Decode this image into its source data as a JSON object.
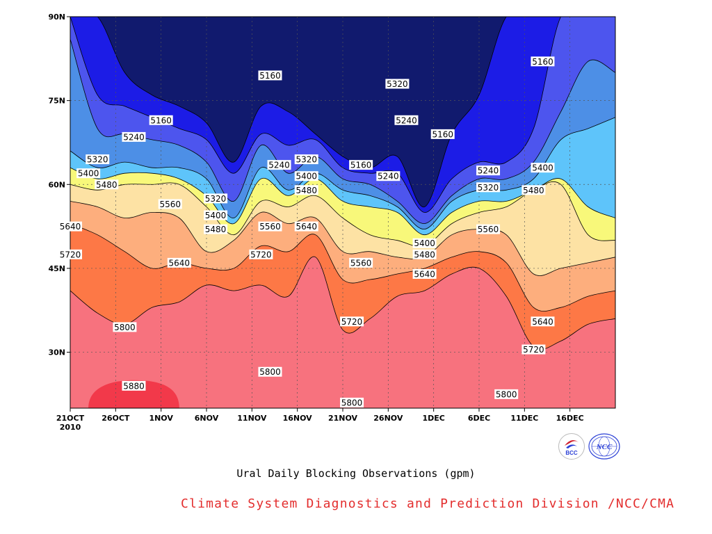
{
  "colors": {
    "bands": [
      "#111a6e",
      "#1c1ce6",
      "#4d55ee",
      "#4d8fe6",
      "#5ec4fa",
      "#f8f87a",
      "#fde2a4",
      "#fdae7d",
      "#fd7846",
      "#f7727e",
      "#f2394a"
    ],
    "credit": "#e32d2d",
    "logo_blue": "#2a3fd6",
    "logo_red": "#d01f2f"
  },
  "icons": {
    "bcc_logo": "bcc-logo-icon",
    "ncc_logo": "ncc-logo-icon"
  },
  "captions": {
    "xaxis": "Ural Daily Blocking Observations (gpm)",
    "credit": "Climate System Diagnostics and Prediction Division /NCC/CMA"
  },
  "logos": {
    "bcc_text": "BCC",
    "ncc_text": "NCC"
  },
  "chart_data": {
    "type": "contour",
    "xlabel": "",
    "ylabel": "",
    "x_ticks": [
      "21OCT",
      "26OCT",
      "1NOV",
      "6NOV",
      "11NOV",
      "16NOV",
      "21NOV",
      "26NOV",
      "1DEC",
      "6DEC",
      "11DEC",
      "16DEC"
    ],
    "x_year_label": "2010",
    "x_range": [
      "2010-10-21",
      "2010-12-20"
    ],
    "y_ticks": [
      {
        "value": 30,
        "label": "30N"
      },
      {
        "value": 45,
        "label": "45N"
      },
      {
        "value": 60,
        "label": "60N"
      },
      {
        "value": 75,
        "label": "75N"
      },
      {
        "value": 90,
        "label": "90N"
      }
    ],
    "ylim": [
      20,
      90
    ],
    "grid": true,
    "contour_levels": [
      5160,
      5240,
      5320,
      5400,
      5480,
      5560,
      5640,
      5720,
      5800,
      5880
    ],
    "contour_latitudes": {
      "dates": [
        "2010-10-21",
        "2010-10-24",
        "2010-10-27",
        "2010-10-30",
        "2010-11-02",
        "2010-11-05",
        "2010-11-08",
        "2010-11-11",
        "2010-11-14",
        "2010-11-17",
        "2010-11-20",
        "2010-11-23",
        "2010-11-26",
        "2010-11-29",
        "2010-12-02",
        "2010-12-05",
        "2010-12-08",
        "2010-12-11",
        "2010-12-14",
        "2010-12-17",
        "2010-12-20"
      ],
      "5160": [
        90,
        90,
        80,
        76,
        74,
        71,
        64,
        74,
        73,
        69,
        65,
        63,
        65,
        56,
        69,
        76,
        90,
        90,
        90,
        90,
        90
      ],
      "5240": [
        90,
        76,
        74,
        72,
        70,
        68,
        62,
        69,
        67,
        68,
        63,
        62,
        62,
        55,
        61,
        64,
        64,
        70,
        90,
        90,
        90
      ],
      "5320": [
        86,
        70,
        69,
        68,
        67,
        64,
        57,
        67,
        62,
        65,
        61,
        60,
        57,
        53,
        58,
        61,
        61,
        64,
        73,
        82,
        80
      ],
      "5400": [
        66,
        63,
        64,
        63,
        63,
        61,
        54,
        63,
        59,
        62,
        59,
        58,
        56,
        52,
        57,
        59,
        59,
        61,
        68,
        70,
        72
      ],
      "5480": [
        63,
        61,
        62,
        62,
        61,
        58,
        53,
        61,
        58,
        61,
        57,
        56,
        55,
        51,
        55,
        57,
        57,
        59,
        61,
        56,
        54
      ],
      "5560": [
        60,
        59,
        60,
        60,
        60,
        56,
        51,
        57,
        56,
        58,
        54,
        51,
        50,
        49,
        53,
        55,
        56,
        59,
        60,
        51,
        50
      ],
      "5640": [
        57,
        56,
        54,
        55,
        54,
        48,
        50,
        55,
        53,
        54,
        48,
        48,
        47,
        47,
        51,
        52,
        51,
        44,
        45,
        46,
        47
      ],
      "5720": [
        53,
        51,
        48,
        45,
        46,
        45,
        45,
        49,
        48,
        51,
        43,
        43,
        44,
        45,
        47,
        48,
        46,
        38,
        38,
        40,
        41
      ],
      "5800": [
        41,
        37,
        35,
        38,
        39,
        42,
        41,
        42,
        40,
        47,
        34,
        36,
        40,
        41,
        44,
        45,
        40,
        31,
        32,
        35,
        36
      ],
      "5880": [
        20,
        20,
        22,
        22,
        20,
        20,
        20,
        20,
        20,
        20,
        20,
        20,
        20,
        20,
        20,
        20,
        20,
        20,
        20,
        20,
        20
      ]
    },
    "contour_labels": [
      {
        "text": "5160",
        "date": "2010-10-31",
        "lat": 71.5
      },
      {
        "text": "5160",
        "date": "2010-11-12",
        "lat": 79.5
      },
      {
        "text": "5160",
        "date": "2010-11-22",
        "lat": 63.5
      },
      {
        "text": "5160",
        "date": "2010-12-01",
        "lat": 69
      },
      {
        "text": "5160",
        "date": "2010-12-12",
        "lat": 82
      },
      {
        "text": "5240",
        "date": "2010-10-28",
        "lat": 68.5
      },
      {
        "text": "5240",
        "date": "2010-11-13",
        "lat": 63.5
      },
      {
        "text": "5240",
        "date": "2010-11-25",
        "lat": 61.5
      },
      {
        "text": "5240",
        "date": "2010-11-27",
        "lat": 71.5
      },
      {
        "text": "5240",
        "date": "2010-12-06",
        "lat": 62.5
      },
      {
        "text": "5320",
        "date": "2010-10-24",
        "lat": 64.5
      },
      {
        "text": "5320",
        "date": "2010-11-06",
        "lat": 57.5
      },
      {
        "text": "5320",
        "date": "2010-11-16",
        "lat": 64.5
      },
      {
        "text": "5320",
        "date": "2010-11-26",
        "lat": 78
      },
      {
        "text": "5320",
        "date": "2010-12-06",
        "lat": 59.5
      },
      {
        "text": "5400",
        "date": "2010-10-23",
        "lat": 62
      },
      {
        "text": "5400",
        "date": "2010-11-06",
        "lat": 54.5
      },
      {
        "text": "5400",
        "date": "2010-11-16",
        "lat": 61.5
      },
      {
        "text": "5400",
        "date": "2010-11-29",
        "lat": 49.5
      },
      {
        "text": "5400",
        "date": "2010-12-12",
        "lat": 63
      },
      {
        "text": "5480",
        "date": "2010-10-25",
        "lat": 60
      },
      {
        "text": "5480",
        "date": "2010-11-06",
        "lat": 52
      },
      {
        "text": "5480",
        "date": "2010-11-16",
        "lat": 59
      },
      {
        "text": "5480",
        "date": "2010-11-29",
        "lat": 47.5
      },
      {
        "text": "5480",
        "date": "2010-12-11",
        "lat": 59
      },
      {
        "text": "5560",
        "date": "2010-11-01",
        "lat": 56.5
      },
      {
        "text": "5560",
        "date": "2010-11-12",
        "lat": 52.5
      },
      {
        "text": "5560",
        "date": "2010-11-22",
        "lat": 46
      },
      {
        "text": "5560",
        "date": "2010-12-06",
        "lat": 52
      },
      {
        "text": "5640",
        "date": "2010-10-21",
        "lat": 52.5
      },
      {
        "text": "5640",
        "date": "2010-11-02",
        "lat": 46
      },
      {
        "text": "5640",
        "date": "2010-11-16",
        "lat": 52.5
      },
      {
        "text": "5640",
        "date": "2010-11-29",
        "lat": 44
      },
      {
        "text": "5640",
        "date": "2010-12-12",
        "lat": 35.5
      },
      {
        "text": "5720",
        "date": "2010-10-21",
        "lat": 47.5
      },
      {
        "text": "5720",
        "date": "2010-11-11",
        "lat": 47.5
      },
      {
        "text": "5720",
        "date": "2010-11-21",
        "lat": 35.5
      },
      {
        "text": "5720",
        "date": "2010-12-11",
        "lat": 30.5
      },
      {
        "text": "5800",
        "date": "2010-10-27",
        "lat": 34.5
      },
      {
        "text": "5800",
        "date": "2010-11-12",
        "lat": 26.5
      },
      {
        "text": "5800",
        "date": "2010-11-21",
        "lat": 21
      },
      {
        "text": "5800",
        "date": "2010-12-08",
        "lat": 22.5
      },
      {
        "text": "5880",
        "date": "2010-10-28",
        "lat": 24
      }
    ]
  }
}
